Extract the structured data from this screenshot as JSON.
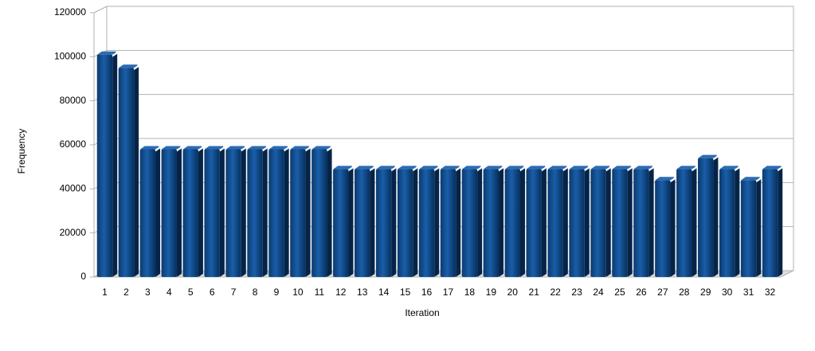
{
  "chart_data": {
    "type": "bar",
    "x_label": "Iteration",
    "y_label": "Frequency",
    "categories": [
      "1",
      "2",
      "3",
      "4",
      "5",
      "6",
      "7",
      "8",
      "9",
      "10",
      "11",
      "12",
      "13",
      "14",
      "15",
      "16",
      "17",
      "18",
      "19",
      "20",
      "21",
      "22",
      "23",
      "24",
      "25",
      "26",
      "27",
      "28",
      "29",
      "30",
      "31",
      "32"
    ],
    "values": [
      101000,
      95000,
      58000,
      58000,
      58000,
      58000,
      58000,
      58000,
      58000,
      58000,
      58000,
      49000,
      49000,
      49000,
      49000,
      49000,
      49000,
      49000,
      49000,
      49000,
      49000,
      49000,
      49000,
      49000,
      49000,
      49000,
      44000,
      49000,
      54000,
      49000,
      44000,
      49000
    ],
    "color": "#0a4a8c",
    "ylim": [
      0,
      120000
    ],
    "yticks": [
      0,
      20000,
      40000,
      60000,
      80000,
      100000,
      120000
    ],
    "grid": true
  }
}
